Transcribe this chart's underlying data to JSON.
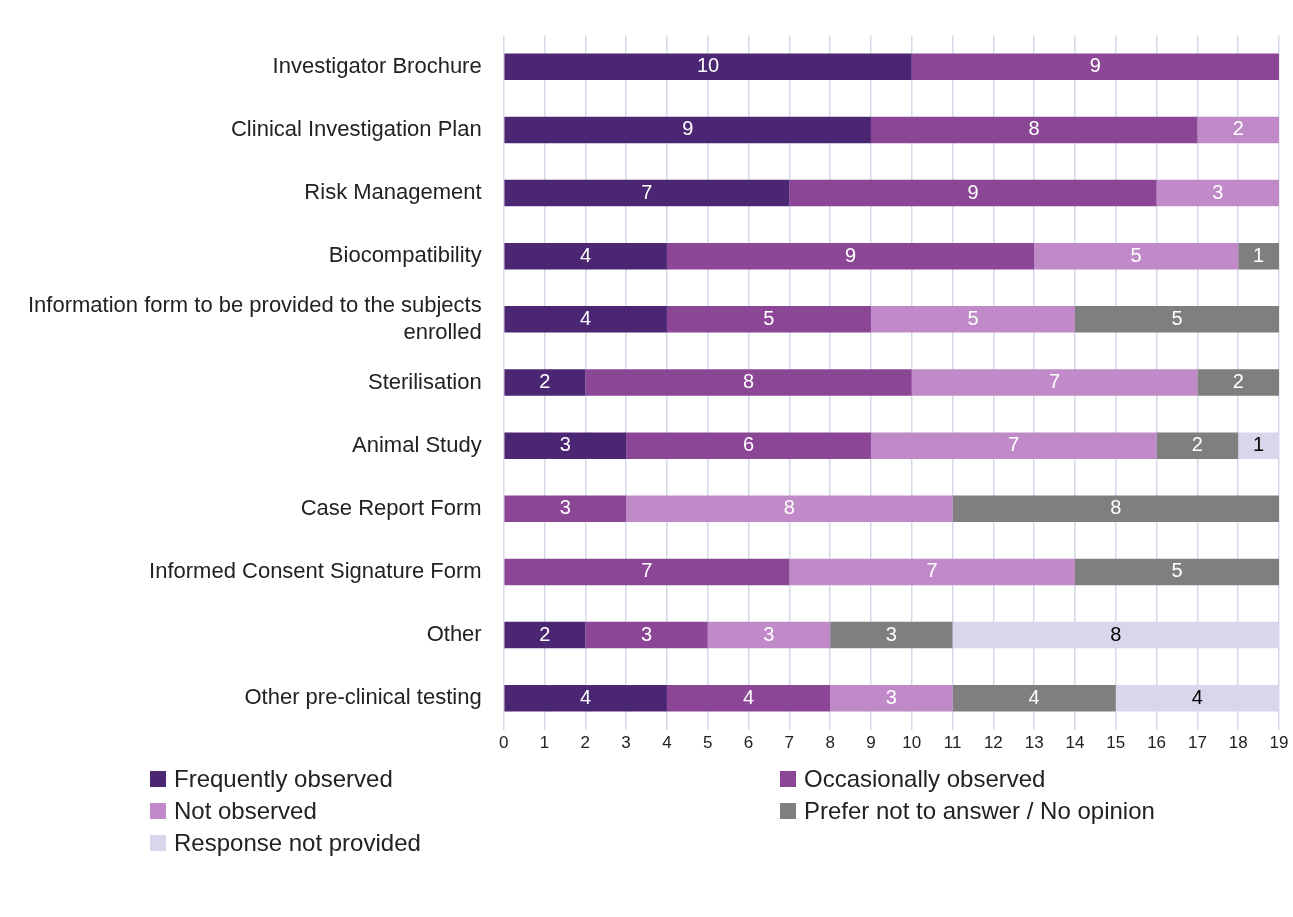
{
  "chart_data": {
    "type": "bar",
    "orientation": "horizontal",
    "stacked": true,
    "data_labels": true,
    "grid": "x",
    "legend": "bottom",
    "categories": [
      "Investigator Brochure",
      "Clinical Investigation Plan",
      "Risk Management",
      "Biocompatibility",
      "Information form to be provided to the subjects enrolled",
      "Sterilisation",
      "Animal Study",
      "Case Report Form",
      "Informed Consent Signature Form",
      "Other",
      "Other pre-clinical testing"
    ],
    "xlim": [
      0,
      19
    ],
    "xticks": [
      0,
      1,
      2,
      3,
      4,
      5,
      6,
      7,
      8,
      9,
      10,
      11,
      12,
      13,
      14,
      15,
      16,
      17,
      18,
      19
    ],
    "series": [
      {
        "name": "Frequently observed",
        "color": "#4b2673",
        "values": [
          10,
          9,
          7,
          4,
          4,
          2,
          3,
          null,
          null,
          2,
          4
        ]
      },
      {
        "name": "Occasionally observed",
        "color": "#8b4796",
        "values": [
          9,
          8,
          9,
          9,
          5,
          8,
          6,
          3,
          7,
          3,
          4
        ]
      },
      {
        "name": "Not observed",
        "color": "#c08ac8",
        "values": [
          null,
          2,
          3,
          5,
          5,
          7,
          7,
          8,
          7,
          3,
          3
        ]
      },
      {
        "name": "Prefer not to answer / No opinion",
        "color": "#7f7f7f",
        "values": [
          null,
          null,
          null,
          1,
          5,
          2,
          2,
          8,
          5,
          3,
          4
        ]
      },
      {
        "name": "Response not provided",
        "color": "#d9d5ec",
        "values": [
          null,
          null,
          null,
          null,
          null,
          null,
          1,
          null,
          null,
          8,
          4
        ]
      }
    ]
  }
}
